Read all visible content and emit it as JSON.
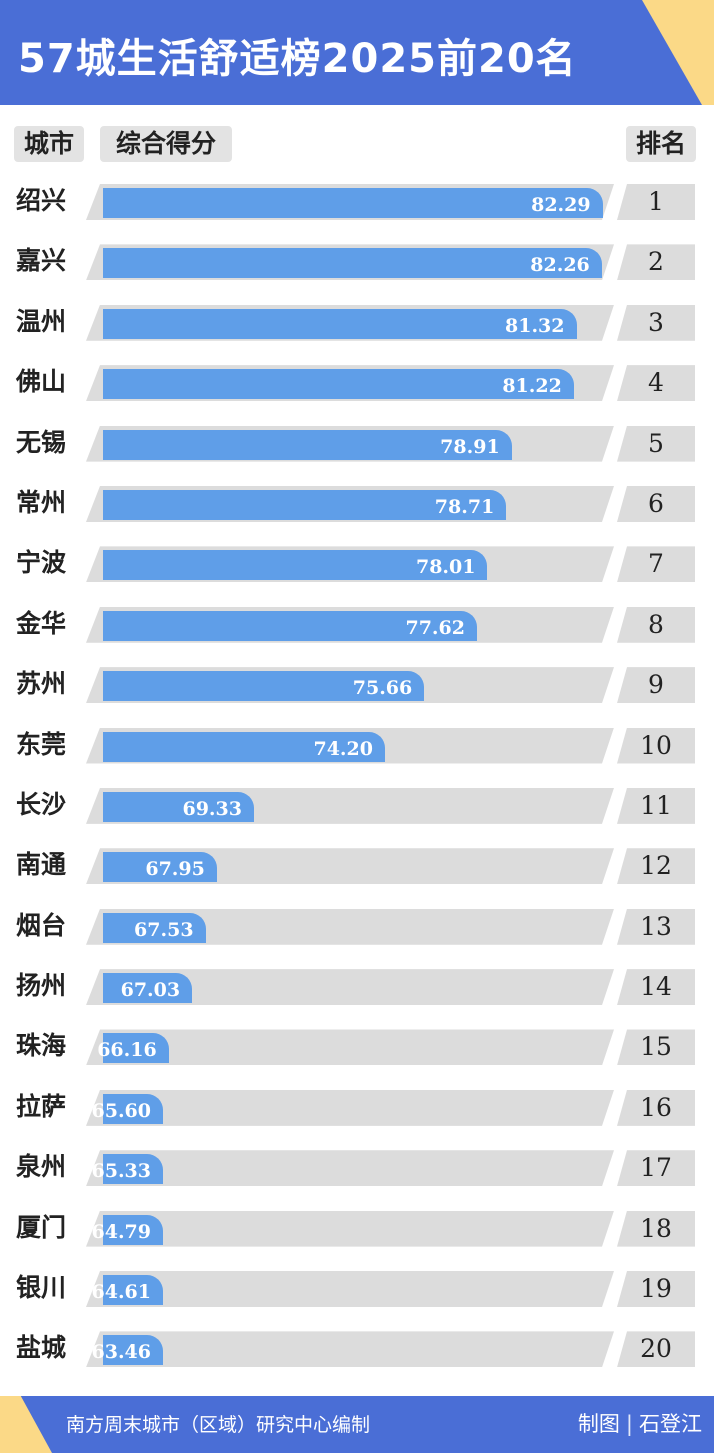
{
  "title": "57城生活舒适榜2025前20名",
  "headers": {
    "city": "城市",
    "score": "综合得分",
    "rank": "排名"
  },
  "colors": {
    "header_bg": "#4a6ed6",
    "accent": "#fbd987",
    "bar": "#5f9ee8",
    "track": "#dcdcdc"
  },
  "chart_data": {
    "type": "bar",
    "orientation": "horizontal",
    "categories": [
      "绍兴",
      "嘉兴",
      "温州",
      "佛山",
      "无锡",
      "常州",
      "宁波",
      "金华",
      "苏州",
      "东莞",
      "长沙",
      "南通",
      "烟台",
      "扬州",
      "珠海",
      "拉萨",
      "泉州",
      "厦门",
      "银川",
      "盐城"
    ],
    "values": [
      82.29,
      82.26,
      81.32,
      81.22,
      78.91,
      78.71,
      78.01,
      77.62,
      75.66,
      74.2,
      69.33,
      67.95,
      67.53,
      67.03,
      66.16,
      65.6,
      65.33,
      64.79,
      64.61,
      63.46
    ],
    "labels": [
      "82.29",
      "82.26",
      "81.32",
      "81.22",
      "78.91",
      "78.71",
      "78.01",
      "77.62",
      "75.66",
      "74.20",
      "69.33",
      "67.95",
      "67.53",
      "67.03",
      "66.16",
      "65.60",
      "65.33",
      "64.79",
      "64.61",
      "63.46"
    ],
    "ranks": [
      "1",
      "2",
      "3",
      "4",
      "5",
      "6",
      "7",
      "8",
      "9",
      "10",
      "11",
      "12",
      "13",
      "14",
      "15",
      "16",
      "17",
      "18",
      "19",
      "20"
    ]
  },
  "footer": {
    "source": "南方周末城市（区域）研究中心编制",
    "credit_label": "制图",
    "separator": "|",
    "credit_name": "石登江"
  }
}
